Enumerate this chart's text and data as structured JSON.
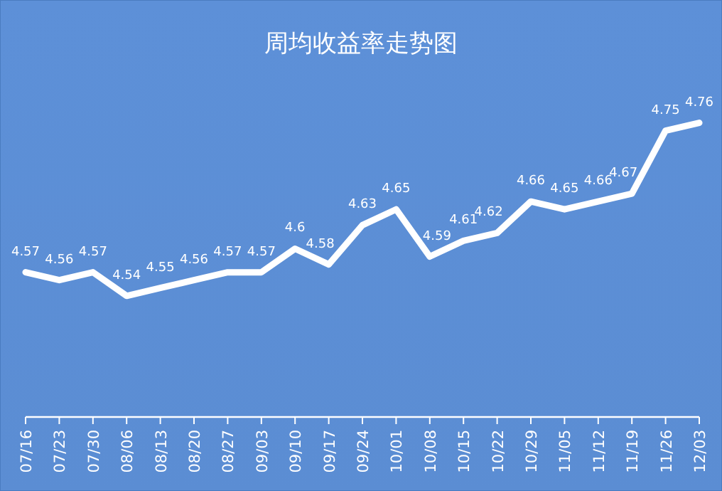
{
  "chart_data": {
    "type": "line",
    "title": "周均收益率走势图",
    "categories": [
      "07/16",
      "07/23",
      "07/30",
      "08/06",
      "08/13",
      "08/20",
      "08/27",
      "09/03",
      "09/10",
      "09/17",
      "09/24",
      "10/01",
      "10/08",
      "10/15",
      "10/22",
      "10/29",
      "11/05",
      "11/12",
      "11/19",
      "11/26",
      "12/03"
    ],
    "series": [
      {
        "color": "#ffffff",
        "values": [
          4.57,
          4.56,
          4.57,
          4.54,
          4.55,
          4.56,
          4.57,
          4.57,
          4.6,
          4.58,
          4.63,
          4.65,
          4.59,
          4.61,
          4.62,
          4.66,
          4.65,
          4.66,
          4.67,
          4.75,
          4.76
        ]
      }
    ],
    "data_labels": true,
    "marker": "none",
    "line_style": "solid"
  }
}
